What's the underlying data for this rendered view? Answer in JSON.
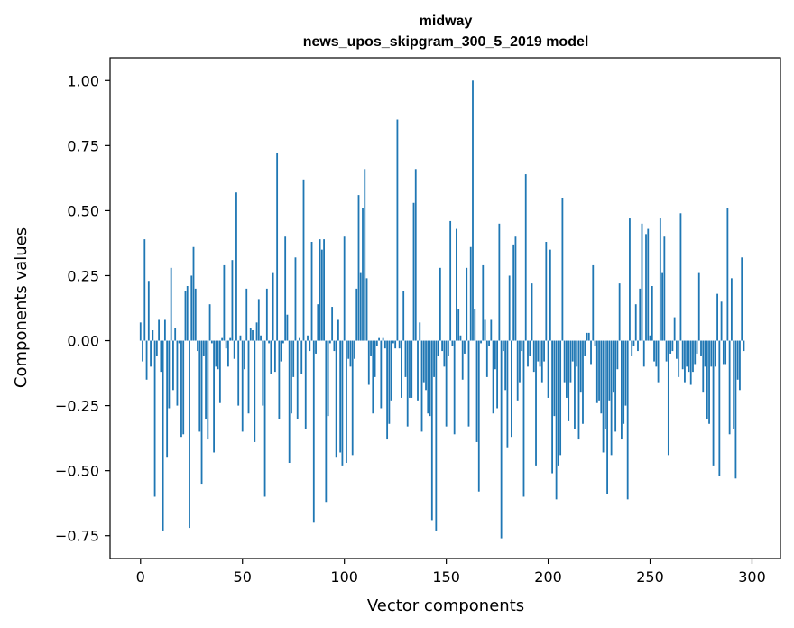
{
  "chart_data": {
    "type": "bar",
    "title": "midway",
    "subtitle": "news_upos_skipgram_300_5_2019 model",
    "xlabel": "Vector components",
    "ylabel": "Components values",
    "xlim": [
      -14.95,
      313.95
    ],
    "ylim": [
      -0.8377,
      1.0877
    ],
    "xticks": [
      0,
      50,
      100,
      150,
      200,
      250,
      300
    ],
    "yticks": [
      1.0,
      0.75,
      0.5,
      0.25,
      0.0,
      -0.25,
      -0.5,
      -0.75
    ],
    "ytick_labels": [
      "1.00",
      "0.75",
      "0.50",
      "0.25",
      "0.00",
      "−0.25",
      "−0.50",
      "−0.75"
    ],
    "grid": false,
    "color": "#1f77b4",
    "values": [
      0.07,
      -0.08,
      0.39,
      -0.15,
      0.23,
      -0.1,
      0.04,
      -0.6,
      -0.06,
      0.08,
      -0.12,
      -0.73,
      0.08,
      -0.45,
      -0.26,
      0.28,
      -0.19,
      0.05,
      -0.25,
      -0.01,
      -0.37,
      -0.36,
      0.19,
      0.21,
      -0.72,
      0.25,
      0.36,
      0.2,
      -0.04,
      -0.35,
      -0.55,
      -0.06,
      -0.3,
      -0.38,
      0.14,
      -0.01,
      -0.43,
      -0.1,
      -0.11,
      -0.24,
      0.01,
      0.29,
      -0.03,
      -0.1,
      0.01,
      0.31,
      -0.07,
      0.57,
      -0.25,
      0.02,
      -0.35,
      -0.11,
      0.2,
      -0.28,
      0.05,
      0.04,
      -0.39,
      0.07,
      0.16,
      0.02,
      -0.25,
      -0.6,
      0.2,
      -0.01,
      -0.13,
      0.26,
      -0.12,
      0.72,
      -0.3,
      -0.08,
      -0.01,
      0.4,
      0.1,
      -0.47,
      -0.28,
      -0.14,
      0.32,
      -0.3,
      0.01,
      -0.13,
      0.62,
      -0.34,
      0.02,
      -0.04,
      0.38,
      -0.7,
      -0.05,
      0.14,
      0.39,
      0.35,
      0.39,
      -0.62,
      -0.29,
      -0.01,
      0.13,
      -0.04,
      -0.45,
      0.08,
      -0.43,
      -0.48,
      0.4,
      -0.47,
      -0.07,
      -0.1,
      -0.44,
      -0.07,
      0.2,
      0.56,
      0.26,
      0.51,
      0.66,
      0.24,
      -0.17,
      -0.06,
      -0.28,
      -0.14,
      -0.02,
      0.01,
      -0.26,
      0.01,
      -0.03,
      -0.38,
      -0.32,
      -0.23,
      -0.01,
      -0.03,
      0.85,
      -0.03,
      -0.22,
      0.19,
      -0.14,
      -0.33,
      -0.22,
      -0.22,
      0.53,
      0.66,
      -0.23,
      0.07,
      -0.35,
      -0.16,
      -0.19,
      -0.28,
      -0.29,
      -0.69,
      -0.14,
      -0.73,
      -0.06,
      0.28,
      -0.04,
      -0.1,
      -0.33,
      -0.06,
      0.46,
      -0.02,
      -0.36,
      0.43,
      0.12,
      0.02,
      -0.15,
      -0.05,
      0.28,
      -0.33,
      0.36,
      1.0,
      0.12,
      -0.39,
      -0.58,
      -0.01,
      0.29,
      0.08,
      -0.14,
      -0.02,
      0.08,
      -0.28,
      -0.11,
      -0.26,
      0.45,
      -0.76,
      -0.04,
      -0.19,
      -0.41,
      0.25,
      -0.37,
      0.37,
      0.4,
      -0.23,
      -0.16,
      -0.04,
      -0.6,
      0.64,
      -0.1,
      -0.06,
      0.22,
      -0.12,
      -0.48,
      -0.08,
      -0.1,
      -0.16,
      -0.08,
      0.38,
      -0.22,
      0.35,
      -0.51,
      -0.29,
      -0.61,
      -0.48,
      -0.44,
      0.55,
      -0.16,
      -0.22,
      -0.31,
      -0.16,
      -0.08,
      -0.34,
      -0.1,
      -0.38,
      -0.2,
      -0.32,
      -0.06,
      0.03,
      0.03,
      -0.09,
      0.29,
      -0.02,
      -0.24,
      -0.23,
      -0.28,
      -0.43,
      -0.34,
      -0.59,
      -0.23,
      -0.44,
      -0.2,
      -0.35,
      -0.11,
      0.22,
      -0.38,
      -0.32,
      -0.25,
      -0.61,
      0.47,
      -0.06,
      -0.02,
      0.14,
      -0.04,
      0.2,
      0.45,
      -0.1,
      0.41,
      0.43,
      0.02,
      0.21,
      -0.08,
      -0.1,
      -0.16,
      0.47,
      0.26,
      0.4,
      -0.08,
      -0.44,
      -0.05,
      -0.04,
      0.09,
      -0.07,
      -0.14,
      0.49,
      -0.11,
      -0.16,
      -0.1,
      -0.12,
      -0.17,
      -0.12,
      -0.09,
      -0.05,
      0.26,
      -0.06,
      -0.2,
      -0.1,
      -0.3,
      -0.32,
      -0.1,
      -0.48,
      -0.1,
      0.18,
      -0.52,
      0.15,
      -0.09,
      -0.09,
      0.51,
      -0.36,
      0.24,
      -0.34,
      -0.53,
      -0.15,
      -0.19,
      0.32,
      -0.04
    ]
  }
}
